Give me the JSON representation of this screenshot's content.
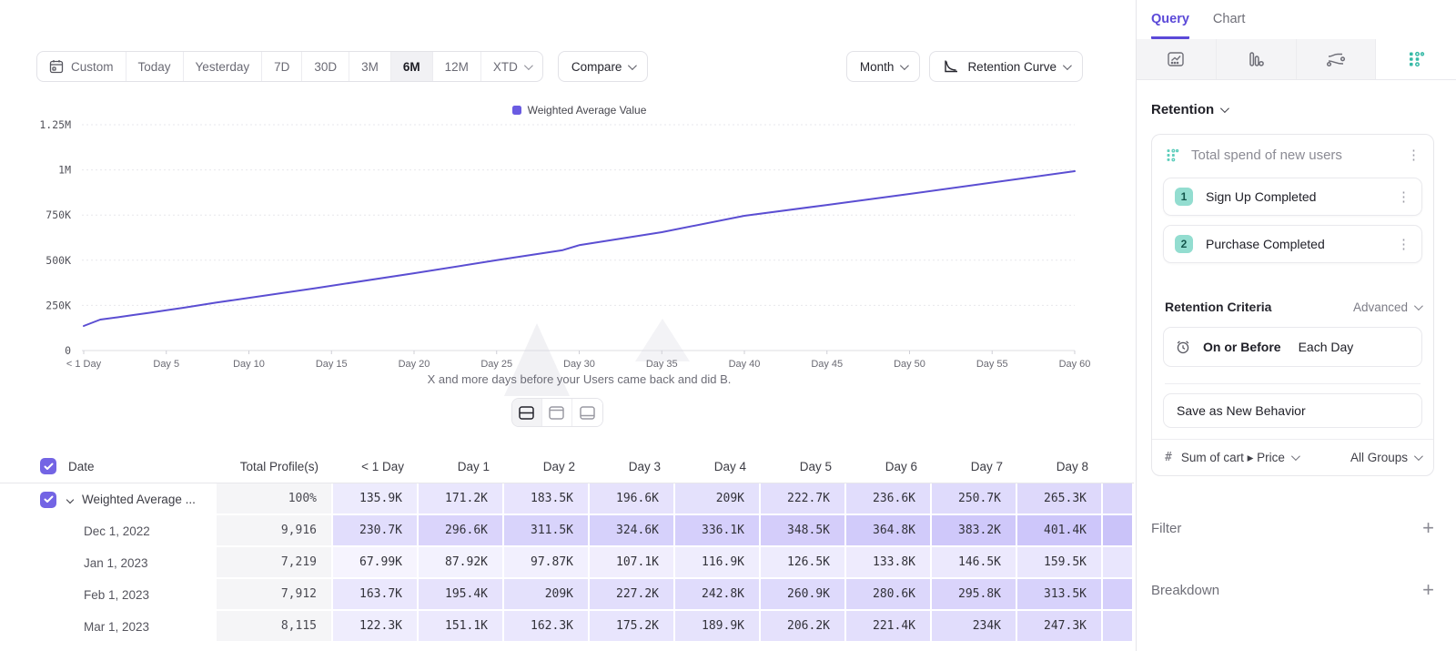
{
  "toolbar": {
    "date_ranges": [
      "Custom",
      "Today",
      "Yesterday",
      "7D",
      "30D",
      "3M",
      "6M",
      "12M",
      "XTD"
    ],
    "selected_range": "6M",
    "compare_label": "Compare",
    "granularity_label": "Month",
    "chart_type_label": "Retention Curve"
  },
  "chart_data": {
    "type": "line",
    "legend": [
      "Weighted Average Value"
    ],
    "legend_position": "top-center",
    "grid": "horizontal-dashed",
    "xlim": [
      0,
      60
    ],
    "ylim": [
      0,
      1250000
    ],
    "x_ticks": [
      {
        "label": "< 1 Day",
        "day": 0
      },
      {
        "label": "Day 5",
        "day": 5
      },
      {
        "label": "Day 10",
        "day": 10
      },
      {
        "label": "Day 15",
        "day": 15
      },
      {
        "label": "Day 20",
        "day": 20
      },
      {
        "label": "Day 25",
        "day": 25
      },
      {
        "label": "Day 30",
        "day": 30
      },
      {
        "label": "Day 35",
        "day": 35
      },
      {
        "label": "Day 40",
        "day": 40
      },
      {
        "label": "Day 45",
        "day": 45
      },
      {
        "label": "Day 50",
        "day": 50
      },
      {
        "label": "Day 55",
        "day": 55
      },
      {
        "label": "Day 60",
        "day": 60
      }
    ],
    "y_ticks": [
      {
        "label": "0",
        "value": 0
      },
      {
        "label": "250K",
        "value": 250000
      },
      {
        "label": "500K",
        "value": 500000
      },
      {
        "label": "750K",
        "value": 750000
      },
      {
        "label": "1M",
        "value": 1000000
      },
      {
        "label": "1.25M",
        "value": 1250000
      }
    ],
    "series": [
      {
        "name": "Weighted Average Value",
        "color": "#5b4ed2",
        "points": [
          [
            0,
            135900
          ],
          [
            1,
            171200
          ],
          [
            2,
            183500
          ],
          [
            3,
            196600
          ],
          [
            4,
            209000
          ],
          [
            5,
            222700
          ],
          [
            6,
            236600
          ],
          [
            7,
            250700
          ],
          [
            8,
            265300
          ],
          [
            14,
            345000
          ],
          [
            20,
            428000
          ],
          [
            25,
            500000
          ],
          [
            29,
            556000
          ],
          [
            30,
            583000
          ],
          [
            35,
            655000
          ],
          [
            40,
            746000
          ],
          [
            45,
            806000
          ],
          [
            50,
            867000
          ],
          [
            55,
            930000
          ],
          [
            60,
            993000
          ]
        ]
      }
    ],
    "caption": "X and more days before your Users came back and did B."
  },
  "table": {
    "headers": [
      "Date",
      "Total Profile(s)",
      "< 1 Day",
      "Day 1",
      "Day 2",
      "Day 3",
      "Day 4",
      "Day 5",
      "Day 6",
      "Day 7",
      "Day 8"
    ],
    "rows": [
      {
        "label": "Weighted Average ...",
        "expandable": true,
        "checked": true,
        "total": "100%",
        "values": [
          "135.9K",
          "171.2K",
          "183.5K",
          "196.6K",
          "209K",
          "222.7K",
          "236.6K",
          "250.7K",
          "265.3K"
        ]
      },
      {
        "label": "Dec 1, 2022",
        "total": "9,916",
        "values": [
          "230.7K",
          "296.6K",
          "311.5K",
          "324.6K",
          "336.1K",
          "348.5K",
          "364.8K",
          "383.2K",
          "401.4K"
        ]
      },
      {
        "label": "Jan 1, 2023",
        "total": "7,219",
        "values": [
          "67.99K",
          "87.92K",
          "97.87K",
          "107.1K",
          "116.9K",
          "126.5K",
          "133.8K",
          "146.5K",
          "159.5K"
        ]
      },
      {
        "label": "Feb 1, 2023",
        "total": "7,912",
        "values": [
          "163.7K",
          "195.4K",
          "209K",
          "227.2K",
          "242.8K",
          "260.9K",
          "280.6K",
          "295.8K",
          "313.5K"
        ]
      },
      {
        "label": "Mar 1, 2023",
        "total": "8,115",
        "values": [
          "122.3K",
          "151.1K",
          "162.3K",
          "175.2K",
          "189.9K",
          "206.2K",
          "221.4K",
          "234K",
          "247.3K"
        ]
      }
    ]
  },
  "sidebar": {
    "tabs": [
      {
        "label": "Query",
        "active": true
      },
      {
        "label": "Chart",
        "active": false
      }
    ],
    "chart_type_tabs": [
      "insights-icon",
      "bar-chart-icon",
      "flows-icon",
      "retention-icon"
    ],
    "selected_chart_type": "retention-icon",
    "section_title": "Retention",
    "behavior": {
      "title": "Total spend of new users",
      "steps": [
        {
          "num": "1",
          "label": "Sign Up Completed"
        },
        {
          "num": "2",
          "label": "Purchase Completed"
        }
      ],
      "criteria_label": "Retention Criteria",
      "criteria_mode": "Advanced",
      "on_or_before": "On or Before",
      "each_day": "Each Day",
      "save_button": "Save as New Behavior",
      "measure_prefix": "#",
      "measure": "Sum of cart ▸ Price",
      "groups": "All Groups"
    },
    "filter_label": "Filter",
    "breakdown_label": "Breakdown"
  },
  "colors": {
    "accent_purple": "#5b4ed2",
    "heat_base": "#715DF0",
    "teal": "#35b9a6",
    "badge_teal": "#93ddd0",
    "selected_segment_bg": "#f1f1f4"
  }
}
